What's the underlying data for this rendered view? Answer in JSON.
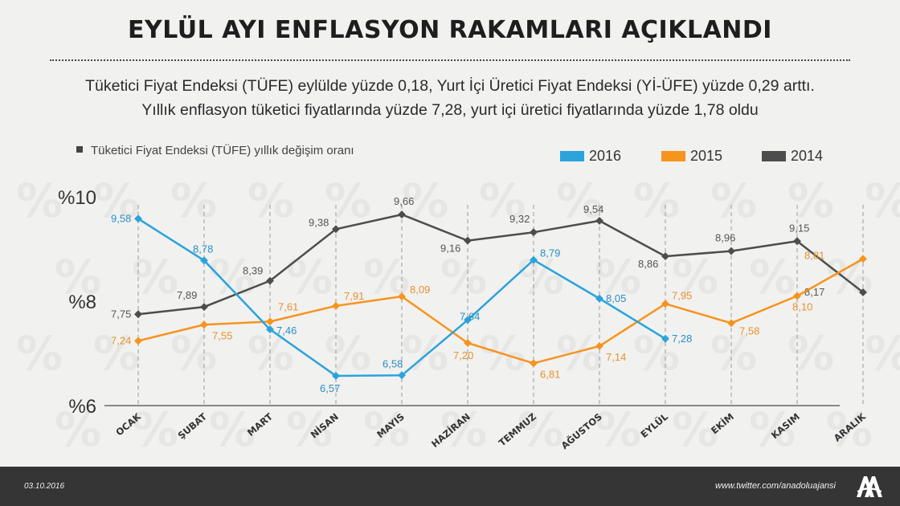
{
  "header": {
    "title": "EYLÜL AYI ENFLASYON RAKAMLARI AÇIKLANDI",
    "subtitle_line1": "Tüketici Fiyat Endeksi (TÜFE) eylülde yüzde 0,18, Yurt İçi Üretici Fiyat Endeksi (Yİ-ÜFE) yüzde 0,29 arttı.",
    "subtitle_line2": "Yıllık enflasyon tüketici fiyatlarında yüzde 7,28, yurt içi üretici fiyatlarında yüzde 1,78 oldu"
  },
  "footer": {
    "date": "03.10.2016",
    "social": "www.twitter.com/anadoluajansi",
    "logo_icon": "aa-logo-icon"
  },
  "chart_data": {
    "type": "line",
    "note": "Tüketici Fiyat Endeksi (TÜFE) yıllık değişim oranı",
    "categories": [
      "OCAK",
      "ŞUBAT",
      "MART",
      "NİSAN",
      "MAYIS",
      "HAZİRAN",
      "TEMMUZ",
      "AĞUSTOS",
      "EYLÜL",
      "EKİM",
      "KASIM",
      "ARALIK"
    ],
    "y_ticks": [
      {
        "value": 10,
        "label": "%10"
      },
      {
        "value": 8,
        "label": "%8"
      },
      {
        "value": 6,
        "label": "%6"
      }
    ],
    "ylim": [
      6,
      10
    ],
    "grid": "vertical-dashed",
    "legend_position": "top-right",
    "series": [
      {
        "name": "2016",
        "color": "#2ba3dc",
        "label_color": "#2b8fc4",
        "values": [
          9.58,
          8.78,
          7.46,
          6.57,
          6.58,
          7.64,
          8.79,
          8.05,
          7.28,
          null,
          null,
          null
        ],
        "labels": [
          "9,58",
          "8,78",
          "7,46",
          "6,57",
          "6,58",
          "7,64",
          "8,79",
          "8,05",
          "7,28",
          null,
          null,
          null
        ]
      },
      {
        "name": "2015",
        "color": "#f7941d",
        "label_color": "#e8912a",
        "values": [
          7.24,
          7.55,
          7.61,
          7.91,
          8.09,
          7.2,
          6.81,
          7.14,
          7.95,
          7.58,
          8.1,
          8.81
        ],
        "labels": [
          "7,24",
          "7,55",
          "7,61",
          "7,91",
          "8,09",
          "7,20",
          "6,81",
          "7,14",
          "7,95",
          "7,58",
          "8,10",
          "8,81"
        ]
      },
      {
        "name": "2014",
        "color": "#4d4d4d",
        "label_color": "#555555",
        "values": [
          7.75,
          7.89,
          8.39,
          9.38,
          9.66,
          9.16,
          9.32,
          9.54,
          8.86,
          8.96,
          9.15,
          8.17
        ],
        "labels": [
          "7,75",
          "7,89",
          "8,39",
          "9,38",
          "9,66",
          "9,16",
          "9,32",
          "9,54",
          "8,86",
          "8,96",
          "9,15",
          "8,17"
        ]
      }
    ]
  }
}
